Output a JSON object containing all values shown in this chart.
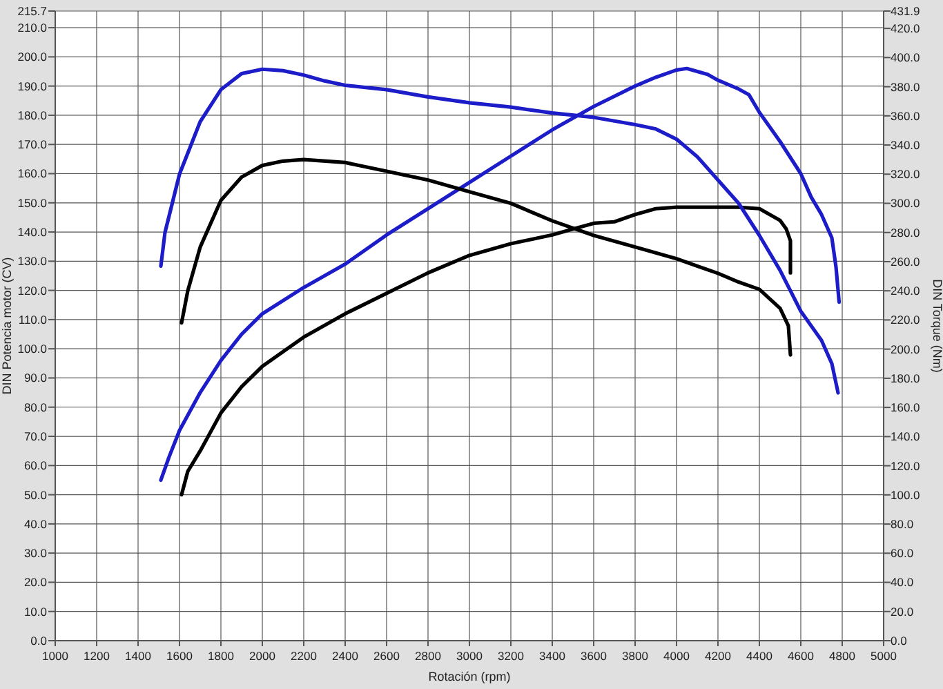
{
  "chart_data": {
    "type": "line",
    "xlabel": "Rotación (rpm)",
    "ylabel": "DIN Potencia motor (CV)",
    "y2label": "DIN Torque (Nm)",
    "xlim": [
      1000,
      5000
    ],
    "xticks": [
      1000,
      1200,
      1400,
      1600,
      1800,
      2000,
      2200,
      2400,
      2600,
      2800,
      3000,
      3200,
      3400,
      3600,
      3800,
      4000,
      4200,
      4400,
      4600,
      4800,
      5000
    ],
    "ylim": [
      0,
      215.7
    ],
    "yticks": [
      {
        "value": 0,
        "label": "0.0"
      },
      {
        "value": 10,
        "label": "10.0"
      },
      {
        "value": 20,
        "label": "20.0"
      },
      {
        "value": 30,
        "label": "30.0"
      },
      {
        "value": 40,
        "label": "40.0"
      },
      {
        "value": 50,
        "label": "50.0"
      },
      {
        "value": 60,
        "label": "60.0"
      },
      {
        "value": 70,
        "label": "70.0"
      },
      {
        "value": 80,
        "label": "80.0"
      },
      {
        "value": 90,
        "label": "90.0"
      },
      {
        "value": 100,
        "label": "100.0"
      },
      {
        "value": 110,
        "label": "110.0"
      },
      {
        "value": 120,
        "label": "120.0"
      },
      {
        "value": 130,
        "label": "130.0"
      },
      {
        "value": 140,
        "label": "140.0"
      },
      {
        "value": 150,
        "label": "150.0"
      },
      {
        "value": 160,
        "label": "160.0"
      },
      {
        "value": 170,
        "label": "170.0"
      },
      {
        "value": 180,
        "label": "180.0"
      },
      {
        "value": 190,
        "label": "190.0"
      },
      {
        "value": 200,
        "label": "200.0"
      },
      {
        "value": 210,
        "label": "210.0"
      },
      {
        "value": 215.7,
        "label": "215.7"
      }
    ],
    "y2lim": [
      0,
      431.9
    ],
    "y2ticks": [
      {
        "value": 0,
        "label": "0.0"
      },
      {
        "value": 20,
        "label": "20.0"
      },
      {
        "value": 40,
        "label": "40.0"
      },
      {
        "value": 60,
        "label": "60.0"
      },
      {
        "value": 80,
        "label": "80.0"
      },
      {
        "value": 100,
        "label": "100.0"
      },
      {
        "value": 120,
        "label": "120.0"
      },
      {
        "value": 140,
        "label": "140.0"
      },
      {
        "value": 160,
        "label": "160.0"
      },
      {
        "value": 180,
        "label": "180.0"
      },
      {
        "value": 200,
        "label": "200.0"
      },
      {
        "value": 220,
        "label": "220.0"
      },
      {
        "value": 240,
        "label": "240.0"
      },
      {
        "value": 260,
        "label": "260.0"
      },
      {
        "value": 280,
        "label": "280.0"
      },
      {
        "value": 300,
        "label": "300.0"
      },
      {
        "value": 320,
        "label": "320.0"
      },
      {
        "value": 340,
        "label": "340.0"
      },
      {
        "value": 360,
        "label": "360.0"
      },
      {
        "value": 380,
        "label": "380.0"
      },
      {
        "value": 400,
        "label": "400.0"
      },
      {
        "value": 420,
        "label": "420.0"
      },
      {
        "value": 431.9,
        "label": "431.9"
      }
    ],
    "grid": true,
    "marker": "none",
    "line_style": "solid",
    "series": [
      {
        "color": "#1c1cc8",
        "x": [
          1510,
          1550,
          1600,
          1700,
          1800,
          1900,
          2000,
          2200,
          2400,
          2600,
          2800,
          3000,
          3200,
          3400,
          3600,
          3800,
          3900,
          4000,
          4050,
          4150,
          4200,
          4300,
          4350,
          4400,
          4500,
          4600,
          4650,
          4700,
          4750,
          4770,
          4785
        ],
        "values": [
          55,
          63,
          72,
          85,
          96,
          105,
          112,
          121,
          129,
          139,
          148,
          157,
          166,
          175,
          183,
          190,
          193,
          195.5,
          196,
          194,
          192,
          189,
          187,
          181,
          171,
          160,
          152,
          146,
          138,
          128,
          116
        ]
      },
      {
        "color": "#000000",
        "x": [
          1610,
          1640,
          1700,
          1800,
          1900,
          2000,
          2200,
          2400,
          2600,
          2800,
          3000,
          3200,
          3400,
          3500,
          3600,
          3700,
          3800,
          3900,
          4000,
          4100,
          4200,
          4300,
          4400,
          4500,
          4530,
          4550,
          4550
        ],
        "values": [
          50,
          58,
          65,
          78,
          87,
          94,
          104,
          112,
          119,
          126,
          132,
          136,
          139,
          141,
          143,
          143.5,
          146,
          148,
          148.5,
          148.5,
          148.5,
          148.5,
          148,
          144,
          141,
          137,
          126
        ]
      },
      {
        "color": "#1c1cc8",
        "axis": "y2",
        "x": [
          1510,
          1530,
          1600,
          1700,
          1800,
          1900,
          2000,
          2100,
          2200,
          2300,
          2400,
          2600,
          2800,
          3000,
          3200,
          3400,
          3600,
          3800,
          3900,
          4000,
          4100,
          4200,
          4300,
          4400,
          4500,
          4600,
          4700,
          4750,
          4780
        ],
        "values": [
          257,
          280,
          320,
          356,
          378,
          389,
          392,
          391,
          388,
          384,
          381,
          378,
          373,
          369,
          366,
          362,
          359,
          354,
          351,
          344,
          332,
          316,
          300,
          278,
          254,
          226,
          206,
          190,
          170
        ]
      },
      {
        "color": "#000000",
        "axis": "y2",
        "x": [
          1610,
          1640,
          1700,
          1800,
          1900,
          2000,
          2100,
          2200,
          2400,
          2600,
          2800,
          3000,
          3200,
          3400,
          3600,
          3800,
          4000,
          4200,
          4300,
          4400,
          4500,
          4540,
          4550
        ],
        "values": [
          218,
          240,
          270,
          302,
          318,
          326,
          329,
          330,
          328,
          322,
          316,
          308,
          300,
          288,
          278,
          270,
          262,
          252,
          246,
          241,
          228,
          216,
          196
        ]
      }
    ]
  }
}
